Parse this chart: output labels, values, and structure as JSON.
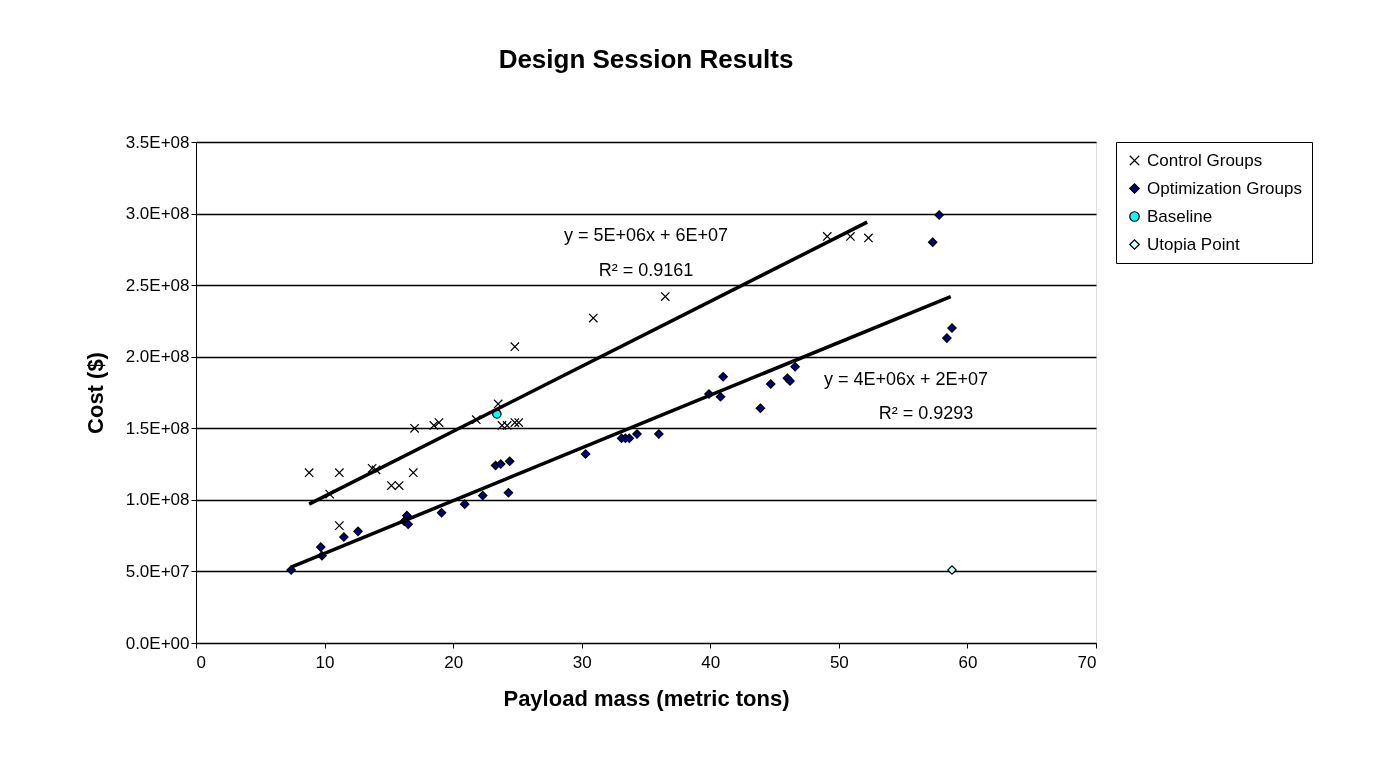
{
  "chart_data": {
    "type": "scatter",
    "title": "Design Session Results",
    "xlabel": "Payload mass (metric tons)",
    "ylabel": "Cost ($)",
    "xlim": [
      0,
      70
    ],
    "xticks": [
      0,
      10,
      20,
      30,
      40,
      50,
      60,
      70
    ],
    "ylim": [
      0,
      350000000
    ],
    "yticks": [
      {
        "value": 0,
        "label": "0.0E+00"
      },
      {
        "value": 50000000,
        "label": "5.0E+07"
      },
      {
        "value": 100000000,
        "label": "1.0E+08"
      },
      {
        "value": 150000000,
        "label": "1.5E+08"
      },
      {
        "value": 200000000,
        "label": "2.0E+08"
      },
      {
        "value": 250000000,
        "label": "2.5E+08"
      },
      {
        "value": 300000000,
        "label": "3.0E+08"
      },
      {
        "value": 350000000,
        "label": "3.5E+08"
      }
    ],
    "grid": "y",
    "legend": "right",
    "series": [
      {
        "name": "Control Groups",
        "marker": "cross",
        "color": "#000000",
        "x": [
          8.8,
          11.15,
          10.4,
          13.7,
          14.0,
          15.2,
          15.8,
          16.9,
          11.15,
          17.0,
          18.5,
          18.9,
          21.8,
          23.5,
          23.8,
          24.2,
          24.8,
          25.1,
          24.8,
          30.9,
          36.5,
          49.1,
          50.9,
          52.3
        ],
        "values": [
          119000000,
          119000000,
          104000000,
          122000000,
          121000000,
          110000000,
          110000000,
          119000000,
          82000000,
          150000000,
          152000000,
          154000000,
          156000000,
          167000000,
          152000000,
          152000000,
          154000000,
          154000000,
          207000000,
          227000000,
          242000000,
          284000000,
          284000000,
          283000000
        ]
      },
      {
        "name": "Optimization Groups",
        "marker": "diamond",
        "color": "#000080",
        "x": [
          7.4,
          9.7,
          9.8,
          11.5,
          12.6,
          16.4,
          16.2,
          16.5,
          19.1,
          20.9,
          22.3,
          24.3,
          23.3,
          23.7,
          24.4,
          30.3,
          33.1,
          33.4,
          33.7,
          34.3,
          36.0,
          39.9,
          40.8,
          41.0,
          43.9,
          44.7,
          46.0,
          46.2,
          46.6,
          57.8,
          57.3,
          58.8,
          58.4
        ],
        "values": [
          51000000,
          67000000,
          61000000,
          74000000,
          78000000,
          89000000,
          85000000,
          83000000,
          91000000,
          97000000,
          103000000,
          105000000,
          124000000,
          125000000,
          127000000,
          132000000,
          143000000,
          143000000,
          143000000,
          146000000,
          146000000,
          174000000,
          172000000,
          186000000,
          164000000,
          181000000,
          185000000,
          183000000,
          193000000,
          299000000,
          280000000,
          220000000,
          213000000
        ]
      },
      {
        "name": "Baseline",
        "marker": "circle",
        "color": "#00ffff",
        "x": [
          23.4
        ],
        "values": [
          160000000
        ]
      },
      {
        "name": "Utopia Point",
        "marker": "diamond",
        "color": "#ccffff",
        "x": [
          58.8
        ],
        "values": [
          51000000
        ]
      },
      {
        "type": "line",
        "color": "#000000",
        "line_style": "solid",
        "x": [
          8.8,
          52.2
        ],
        "values": [
          97000000,
          294000000
        ]
      },
      {
        "type": "line",
        "color": "#000000",
        "line_style": "solid",
        "x": [
          7.4,
          58.7
        ],
        "values": [
          53000000,
          242000000
        ]
      }
    ],
    "annotations": [
      "y = 5E+06x + 6E+07",
      "R² = 0.9161",
      "y = 4E+06x + 2E+07",
      "R² = 0.9293"
    ]
  }
}
